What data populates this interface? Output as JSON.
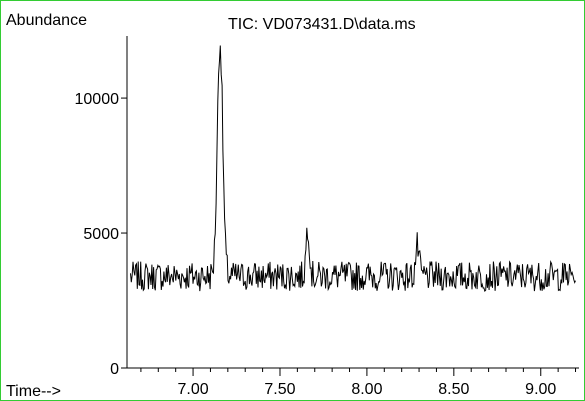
{
  "frame_color": "#33cc33",
  "trace_color": "#000000",
  "chart_data": {
    "type": "line",
    "title": "TIC: VD073431.D\\data.ms",
    "ylabel": "Abundance",
    "xlabel": "Time-->",
    "xlim": [
      6.62,
      9.22
    ],
    "ylim": [
      0,
      12300
    ],
    "x_ticks": [
      7.0,
      7.5,
      8.0,
      8.5,
      9.0
    ],
    "x_tick_labels": [
      "7.00",
      "7.50",
      "8.00",
      "8.50",
      "9.00"
    ],
    "y_ticks": [
      0,
      5000,
      10000
    ],
    "y_tick_labels": [
      "0",
      "5000",
      "10000"
    ],
    "grid": false,
    "baseline": 3400,
    "noise": 550,
    "peaks": [
      {
        "rt": 7.155,
        "height": 12100
      },
      {
        "rt": 7.66,
        "height": 5300
      },
      {
        "rt": 8.29,
        "height": 4500
      }
    ]
  }
}
